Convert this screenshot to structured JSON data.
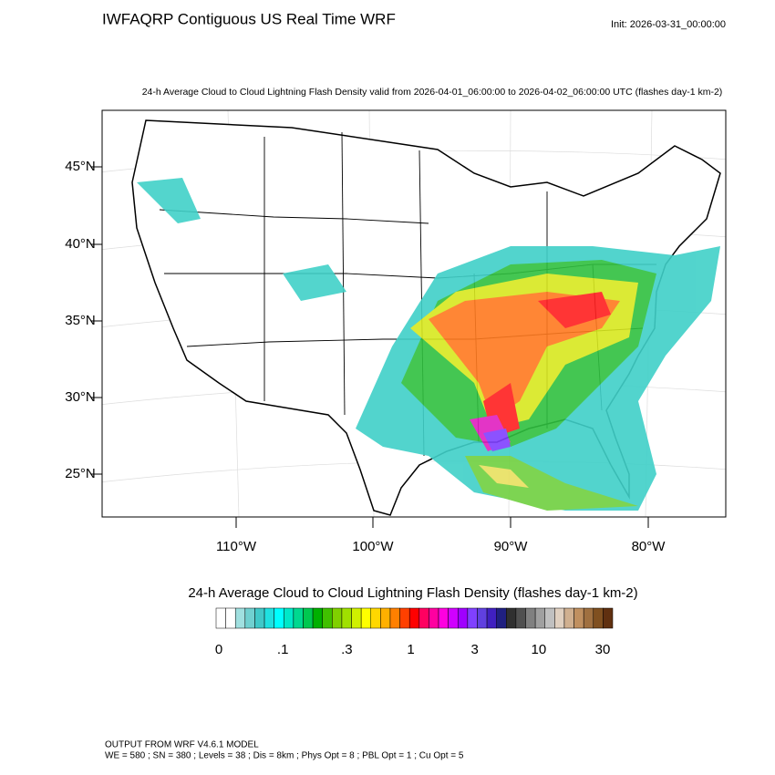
{
  "header": {
    "title": "IWFAQRP Contiguous US Real Time WRF",
    "init": "Init: 2026-03-31_00:00:00"
  },
  "map": {
    "subtitle": "24-h Average Cloud to Cloud Lightning Flash Density valid from 2026-04-01_06:00:00 to 2026-04-02_06:00:00 UTC   (flashes day-1 km-2)",
    "lat_labels": [
      "45°N",
      "40°N",
      "35°N",
      "30°N",
      "25°N"
    ],
    "lon_labels": [
      "110°W",
      "100°W",
      "90°W",
      "80°W"
    ]
  },
  "colorbar": {
    "title": "24-h Average Cloud to Cloud Lightning Flash Density  (flashes day-1 km-2)",
    "labels": [
      "0",
      ".1",
      ".3",
      "1",
      "3",
      "10",
      "30"
    ],
    "colors": [
      "#ffffff",
      "#ffffff",
      "#a0e0e0",
      "#70d0d0",
      "#40c8c8",
      "#20e0e0",
      "#00ffff",
      "#00e8c8",
      "#00d890",
      "#00c850",
      "#00b000",
      "#40c000",
      "#80d000",
      "#a0e000",
      "#d0f000",
      "#ffff00",
      "#ffd800",
      "#ffb000",
      "#ff8000",
      "#ff4000",
      "#ff0000",
      "#ff0060",
      "#ff00a0",
      "#ff00e0",
      "#d000ff",
      "#a000ff",
      "#8040ff",
      "#6040e0",
      "#4020c0",
      "#202080",
      "#303030",
      "#505050",
      "#808080",
      "#a0a0a0",
      "#c0c0c0",
      "#e0d0c0",
      "#d0b090",
      "#c09060",
      "#a07040",
      "#805020",
      "#603010"
    ]
  },
  "footer": {
    "line1": "OUTPUT FROM WRF V4.6.1 MODEL",
    "line2": "WE = 580 ; SN = 380 ; Levels = 38 ; Dis = 8km ; Phys Opt = 8 ; PBL Opt = 1 ; Cu Opt = 5"
  }
}
